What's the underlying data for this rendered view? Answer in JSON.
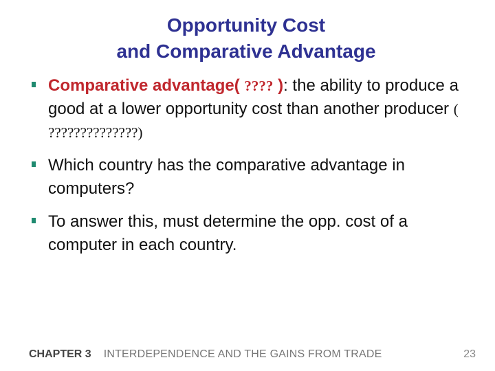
{
  "title": {
    "line1": "Opportunity Cost",
    "line2": "and Comparative Advantage"
  },
  "bullets": [
    {
      "term": "Comparative advantage( ",
      "term_glyphs": "????",
      "term_close": " )",
      "colon": ":  the ability to produce a good at a lower opportunity cost than another producer ",
      "trailing_glyphs": "( ??????????????)"
    },
    {
      "text": "Which country has the comparative advantage in computers?"
    },
    {
      "text": "To answer this, must determine the opp. cost of a computer in each country."
    }
  ],
  "footer": {
    "chapter": "CHAPTER 3",
    "subject": "INTERDEPENDENCE AND THE GAINS FROM TRADE",
    "page": "23"
  },
  "colors": {
    "title": "#2e3192",
    "term": "#c0272d",
    "bullet_marker": "#1f8a70"
  }
}
